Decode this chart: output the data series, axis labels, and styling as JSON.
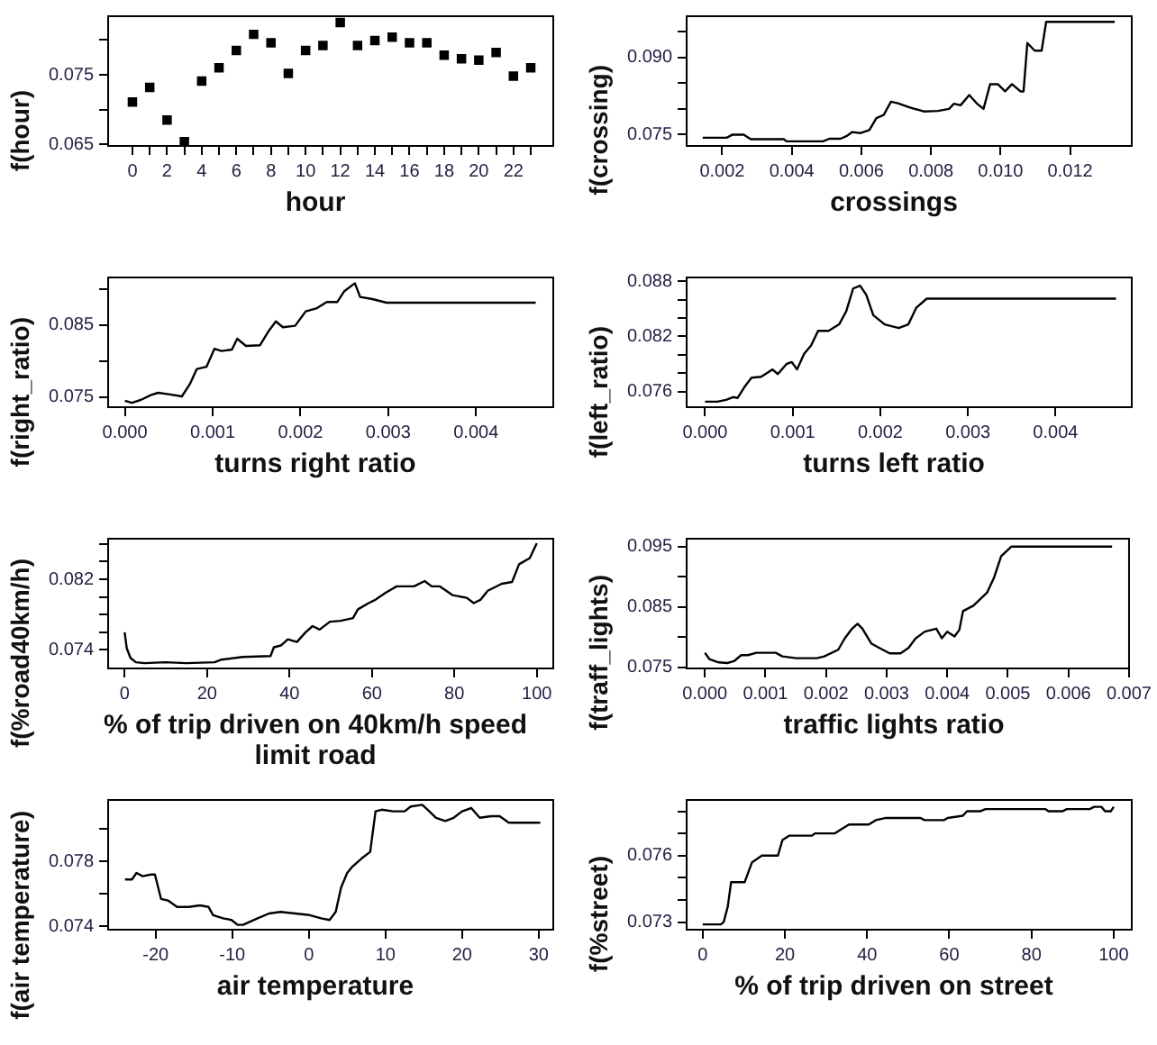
{
  "chart_data": [
    {
      "type": "scatter",
      "xlabel": "hour",
      "ylabel": "f(hour)",
      "color": "#000000",
      "marker": "square",
      "x": [
        0,
        1,
        2,
        3,
        4,
        5,
        6,
        7,
        8,
        9,
        10,
        11,
        12,
        13,
        14,
        15,
        16,
        17,
        18,
        19,
        20,
        21,
        22,
        23
      ],
      "values": [
        0.0711,
        0.0732,
        0.0685,
        0.0654,
        0.0741,
        0.076,
        0.0785,
        0.0808,
        0.0796,
        0.0752,
        0.0785,
        0.0792,
        0.0825,
        0.0792,
        0.0799,
        0.0804,
        0.0796,
        0.0796,
        0.0778,
        0.0773,
        0.0771,
        0.0782,
        0.0748,
        0.076
      ],
      "xlim": [
        -1.4,
        24.3
      ],
      "ylim": [
        0.0648,
        0.0834
      ],
      "xticks": [
        0,
        {
          "value": 1,
          "label": null
        },
        2,
        {
          "value": 3,
          "label": null
        },
        4,
        {
          "value": 5,
          "label": null
        },
        6,
        {
          "value": 7,
          "label": null
        },
        8,
        {
          "value": 9,
          "label": null
        },
        10,
        {
          "value": 11,
          "label": null
        },
        12,
        {
          "value": 13,
          "label": null
        },
        14,
        {
          "value": 15,
          "label": null
        },
        16,
        {
          "value": 17,
          "label": null
        },
        18,
        {
          "value": 19,
          "label": null
        },
        20,
        {
          "value": 21,
          "label": null
        },
        22,
        {
          "value": 23,
          "label": null
        }
      ],
      "yticks": [
        0.065,
        {
          "value": 0.07,
          "label": null
        },
        0.075,
        {
          "value": 0.08,
          "label": null
        }
      ]
    },
    {
      "type": "line",
      "xlabel": "crossings",
      "ylabel": "f(crossing)",
      "color": "#000000",
      "x": [
        0.00144,
        0.00213,
        0.0023,
        0.00262,
        0.00282,
        0.00377,
        0.00385,
        0.0049,
        0.00508,
        0.0054,
        0.00557,
        0.00574,
        0.00598,
        0.00623,
        0.00643,
        0.00664,
        0.00685,
        0.00705,
        0.00738,
        0.00779,
        0.0082,
        0.00852,
        0.00866,
        0.00885,
        0.0091,
        0.00931,
        0.00951,
        0.0097,
        0.00992,
        0.01013,
        0.01033,
        0.01057,
        0.01066,
        0.01077,
        0.01098,
        0.01118,
        0.01131,
        0.01328
      ],
      "values": [
        0.0744,
        0.0744,
        0.075,
        0.075,
        0.0741,
        0.0741,
        0.0737,
        0.0737,
        0.0742,
        0.0742,
        0.0747,
        0.0755,
        0.0753,
        0.0759,
        0.0782,
        0.0788,
        0.0814,
        0.0811,
        0.0803,
        0.0795,
        0.0796,
        0.08,
        0.081,
        0.0807,
        0.0827,
        0.0811,
        0.08,
        0.0848,
        0.0848,
        0.0834,
        0.0848,
        0.0834,
        0.0834,
        0.0928,
        0.0913,
        0.0913,
        0.0969,
        0.0969
      ],
      "xlim": [
        0.00098,
        0.01377
      ],
      "ylim": [
        0.0728,
        0.098
      ],
      "xticks": [
        0.002,
        0.004,
        0.006,
        0.008,
        {
          "value": 0.01,
          "label": "0.010"
        },
        0.012
      ],
      "yticks": [
        0.075,
        {
          "value": 0.08,
          "label": null
        },
        {
          "value": 0.085,
          "label": null
        },
        {
          "value": 0.09,
          "label": "0.090"
        },
        {
          "value": 0.095,
          "label": null
        }
      ]
    },
    {
      "type": "line",
      "xlabel": "turns right ratio",
      "ylabel": "f(right_ratio)",
      "color": "#000000",
      "x": [
        0,
        8e-05,
        0.00018,
        0.0003,
        0.00038,
        0.0005,
        0.00065,
        0.00074,
        0.00082,
        0.00093,
        0.00102,
        0.0011,
        0.00122,
        0.00128,
        0.00138,
        0.00154,
        0.00164,
        0.00172,
        0.0018,
        0.00194,
        0.00206,
        0.00218,
        0.0023,
        0.00242,
        0.0025,
        0.00262,
        0.00268,
        0.00282,
        0.00298,
        0.00468
      ],
      "values": [
        0.0745,
        0.0742,
        0.0746,
        0.0753,
        0.0756,
        0.0754,
        0.0751,
        0.0768,
        0.0789,
        0.0792,
        0.0817,
        0.0814,
        0.0816,
        0.0831,
        0.0821,
        0.0822,
        0.0842,
        0.0855,
        0.0847,
        0.0849,
        0.0869,
        0.0873,
        0.0882,
        0.0882,
        0.0897,
        0.0908,
        0.0889,
        0.0886,
        0.0881,
        0.0881
      ],
      "xlim": [
        -0.00019,
        0.00488
      ],
      "ylim": [
        0.0736,
        0.0916
      ],
      "xticks": [
        {
          "value": 0,
          "label": "0.000"
        },
        0.001,
        0.002,
        0.003,
        0.004
      ],
      "yticks": [
        0.075,
        {
          "value": 0.08,
          "label": null
        },
        0.085,
        {
          "value": 0.09,
          "label": null
        }
      ]
    },
    {
      "type": "line",
      "xlabel": "turns left ratio",
      "ylabel": "f(left_ratio)",
      "color": "#000000",
      "x": [
        0,
        0.00014,
        0.00024,
        0.00032,
        0.00037,
        0.00045,
        0.00053,
        0.00064,
        0.00072,
        0.00077,
        0.00083,
        0.00093,
        0.00099,
        0.00105,
        0.00113,
        0.00121,
        0.00129,
        0.00141,
        0.00153,
        0.00161,
        0.00169,
        0.00177,
        0.00184,
        0.00192,
        0.00205,
        0.00221,
        0.00232,
        0.00241,
        0.00253,
        0.00469
      ],
      "values": [
        0.0749,
        0.0749,
        0.0751,
        0.0754,
        0.0753,
        0.0765,
        0.0775,
        0.0776,
        0.0781,
        0.0784,
        0.0779,
        0.079,
        0.0792,
        0.0784,
        0.0801,
        0.081,
        0.0826,
        0.0826,
        0.0833,
        0.0847,
        0.0872,
        0.0875,
        0.0865,
        0.0843,
        0.0833,
        0.0829,
        0.0833,
        0.0851,
        0.0861,
        0.0861
      ],
      "xlim": [
        -0.00021,
        0.00487
      ],
      "ylim": [
        0.0743,
        0.0884
      ],
      "xticks": [
        {
          "value": 0,
          "label": "0.000"
        },
        0.001,
        0.002,
        0.003,
        0.004
      ],
      "yticks": [
        0.076,
        {
          "value": 0.078,
          "label": null
        },
        {
          "value": 0.08,
          "label": null
        },
        0.082,
        {
          "value": 0.084,
          "label": null
        },
        {
          "value": 0.086,
          "label": null
        },
        0.088
      ]
    },
    {
      "type": "line",
      "xlabel": "% of trip driven on 40km/h speed limit road",
      "ylabel": "f(%road40km/h)",
      "color": "#000000",
      "x": [
        0,
        0.5,
        1.4,
        2.7,
        4.8,
        9.9,
        15,
        21.8,
        23.5,
        28.6,
        35.4,
        36.2,
        37.9,
        39.6,
        41.8,
        43.9,
        45.6,
        47.3,
        49.8,
        52.4,
        55.4,
        56.6,
        59.2,
        60.9,
        63.4,
        66,
        70.2,
        72.8,
        74.5,
        76.5,
        79.6,
        83,
        84.7,
        86.4,
        88.1,
        91.5,
        94,
        95.7,
        98.3,
        100
      ],
      "values": [
        0.076,
        0.0742,
        0.0731,
        0.0726,
        0.0725,
        0.0726,
        0.0725,
        0.0726,
        0.0729,
        0.0732,
        0.0733,
        0.0743,
        0.0745,
        0.0752,
        0.0749,
        0.076,
        0.0767,
        0.0763,
        0.0772,
        0.0773,
        0.0776,
        0.0786,
        0.0793,
        0.0797,
        0.0805,
        0.0812,
        0.0812,
        0.0818,
        0.0812,
        0.0812,
        0.0802,
        0.0799,
        0.0793,
        0.0797,
        0.0807,
        0.0815,
        0.0817,
        0.0837,
        0.0844,
        0.0861
      ],
      "xlim": [
        -4,
        104
      ],
      "ylim": [
        0.0719,
        0.0866
      ],
      "xticks": [
        0,
        20,
        40,
        60,
        80,
        100
      ],
      "yticks": [
        0.074,
        {
          "value": 0.076,
          "label": null
        },
        {
          "value": 0.078,
          "label": null
        },
        {
          "value": 0.08,
          "label": null
        },
        0.082,
        {
          "value": 0.084,
          "label": null
        },
        {
          "value": 0.086,
          "label": null
        }
      ]
    },
    {
      "type": "line",
      "xlabel": "traffic lights ratio",
      "ylabel": "f(traff_lights)",
      "color": "#000000",
      "x": [
        0,
        8e-05,
        0.00023,
        0.00037,
        0.00048,
        0.0006,
        0.00071,
        0.00085,
        0.00117,
        0.00128,
        0.00151,
        0.00185,
        0.00197,
        0.0022,
        0.00231,
        0.00243,
        0.00252,
        0.0026,
        0.00275,
        0.00288,
        0.00305,
        0.00323,
        0.00336,
        0.00348,
        0.00363,
        0.00382,
        0.00391,
        0.004,
        0.00412,
        0.0042,
        0.00426,
        0.00443,
        0.00466,
        0.00477,
        0.00489,
        0.00506,
        0.00672
      ],
      "values": [
        0.0774,
        0.0763,
        0.0758,
        0.0757,
        0.076,
        0.077,
        0.077,
        0.0774,
        0.0774,
        0.0768,
        0.0765,
        0.0765,
        0.0768,
        0.0779,
        0.0798,
        0.0814,
        0.0822,
        0.0814,
        0.0789,
        0.0782,
        0.0773,
        0.0773,
        0.0782,
        0.0798,
        0.0809,
        0.0814,
        0.0798,
        0.0809,
        0.0801,
        0.0812,
        0.0843,
        0.0852,
        0.0874,
        0.0898,
        0.0934,
        0.095,
        0.095
      ],
      "xlim": [
        -0.0003,
        0.007
      ],
      "ylim": [
        0.0748,
        0.0963
      ],
      "xticks": [
        {
          "value": 0,
          "label": "0.000"
        },
        0.001,
        0.002,
        0.003,
        0.004,
        0.005,
        0.006,
        0.007
      ],
      "yticks": [
        0.075,
        {
          "value": 0.08,
          "label": null
        },
        0.085,
        {
          "value": 0.09,
          "label": null
        },
        0.095
      ]
    },
    {
      "type": "line",
      "xlabel": "air temperature",
      "ylabel": "f(air temperature)",
      "color": "#000000",
      "x": [
        -24,
        -23.1,
        -22.5,
        -21.7,
        -20.6,
        -20.1,
        -19.3,
        -18.4,
        -17.2,
        -15.7,
        -14.2,
        -13.1,
        -12.5,
        -11.2,
        -10.1,
        -9.3,
        -8.6,
        -6.7,
        -5.2,
        -3.7,
        -1.8,
        0.1,
        1.6,
        2.7,
        3.5,
        4.2,
        5,
        5.7,
        6.9,
        8,
        8.7,
        9.5,
        11,
        12.5,
        13.3,
        14.8,
        15.5,
        16.6,
        17.8,
        18.9,
        20,
        21.2,
        22.3,
        23.8,
        24.9,
        26.1,
        30.2
      ],
      "values": [
        0.0769,
        0.0769,
        0.0773,
        0.0771,
        0.0772,
        0.0772,
        0.0757,
        0.0756,
        0.0752,
        0.0752,
        0.0753,
        0.0752,
        0.0747,
        0.0745,
        0.0744,
        0.0741,
        0.0741,
        0.0745,
        0.0748,
        0.0749,
        0.0748,
        0.0747,
        0.0745,
        0.0744,
        0.0749,
        0.0764,
        0.0773,
        0.0777,
        0.0782,
        0.0786,
        0.0811,
        0.0812,
        0.0811,
        0.0811,
        0.0814,
        0.0815,
        0.0812,
        0.0807,
        0.0805,
        0.0807,
        0.0811,
        0.0813,
        0.0807,
        0.0808,
        0.0808,
        0.0804,
        0.0804
      ],
      "xlim": [
        -26.2,
        31.9
      ],
      "ylim": [
        0.0738,
        0.0818
      ],
      "xticks": [
        -20,
        -10,
        0,
        10,
        20,
        30
      ],
      "yticks": [
        0.074,
        {
          "value": 0.076,
          "label": null
        },
        0.078,
        {
          "value": 0.08,
          "label": null
        }
      ]
    },
    {
      "type": "line",
      "xlabel": "% of trip driven on street",
      "ylabel": "f(%street)",
      "color": "#000000",
      "x": [
        0,
        4.4,
        5.1,
        6.1,
        6.9,
        7.9,
        10.2,
        12,
        14.4,
        18.3,
        19.4,
        21,
        26.6,
        27.3,
        32.1,
        33.8,
        35.6,
        40.4,
        42.1,
        44.6,
        52.9,
        54,
        58.7,
        59.6,
        63.3,
        64.3,
        67.5,
        68.8,
        83.4,
        84.1,
        87.5,
        88.6,
        94.2,
        95.2,
        97,
        97.9,
        99.3,
        100
      ],
      "values": [
        0.0729,
        0.0729,
        0.073,
        0.0737,
        0.0748,
        0.0748,
        0.0748,
        0.0757,
        0.076,
        0.076,
        0.0767,
        0.0769,
        0.0769,
        0.077,
        0.077,
        0.0772,
        0.0774,
        0.0774,
        0.0776,
        0.0777,
        0.0777,
        0.0776,
        0.0776,
        0.0777,
        0.0778,
        0.078,
        0.078,
        0.0781,
        0.0781,
        0.078,
        0.078,
        0.0781,
        0.0781,
        0.0782,
        0.0782,
        0.078,
        0.078,
        0.0782
      ],
      "xlim": [
        -3.9,
        104.4
      ],
      "ylim": [
        0.07266,
        0.07851
      ],
      "xticks": [
        0,
        20,
        40,
        60,
        80,
        100
      ],
      "yticks": [
        0.073,
        {
          "value": 0.074,
          "label": null
        },
        {
          "value": 0.075,
          "label": null
        },
        0.076,
        {
          "value": 0.077,
          "label": null
        },
        {
          "value": 0.078,
          "label": null
        }
      ]
    }
  ]
}
